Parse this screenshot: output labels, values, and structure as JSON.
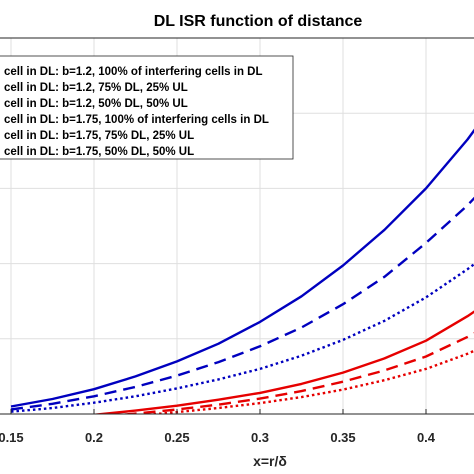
{
  "chart_data": {
    "type": "line",
    "title": "DL  ISR function of distance",
    "xlabel": "x=r/δ",
    "ylabel": "",
    "xlim": [
      0.15,
      0.44
    ],
    "ylim": [
      0,
      1
    ],
    "x_ticks": [
      "0.15",
      "0.2",
      "0.25",
      "0.3",
      "0.35",
      "0.4"
    ],
    "x_tick_values": [
      0.15,
      0.2,
      0.25,
      0.3,
      0.35,
      0.4
    ],
    "grid": true,
    "legend_position": "top-left",
    "x": [
      0.15,
      0.175,
      0.2,
      0.225,
      0.25,
      0.275,
      0.3,
      0.325,
      0.35,
      0.375,
      0.4,
      0.425,
      0.44
    ],
    "series": [
      {
        "name": "cell in DL: b=1.2, 100% of interfering cells in DL",
        "color": "#0000bf",
        "style": "solid",
        "values": [
          0.02,
          0.04,
          0.066,
          0.1,
          0.14,
          0.187,
          0.245,
          0.313,
          0.395,
          0.49,
          0.6,
          0.73,
          0.82
        ]
      },
      {
        "name": "cell in DL: b=1.2, 75% DL, 25% UL",
        "color": "#0000bf",
        "style": "dashed",
        "values": [
          0.012,
          0.027,
          0.047,
          0.072,
          0.102,
          0.138,
          0.18,
          0.23,
          0.292,
          0.365,
          0.455,
          0.555,
          0.625
        ]
      },
      {
        "name": "cell in DL: b=1.2, 50% DL, 50% UL",
        "color": "#0000bf",
        "style": "dotted",
        "values": [
          0.006,
          0.016,
          0.03,
          0.047,
          0.068,
          0.092,
          0.12,
          0.155,
          0.197,
          0.248,
          0.31,
          0.385,
          0.435
        ]
      },
      {
        "name": "cell in DL: b=1.75, 100% of interfering cells in DL",
        "color": "#e60000",
        "style": "solid",
        "values": [
          -0.02,
          -0.012,
          -0.002,
          0.009,
          0.022,
          0.038,
          0.056,
          0.08,
          0.11,
          0.148,
          0.195,
          0.26,
          0.305
        ]
      },
      {
        "name": "cell in DL: b=1.75, 75% DL, 25% UL",
        "color": "#e60000",
        "style": "dashed",
        "values": [
          -0.025,
          -0.018,
          -0.009,
          0.001,
          0.012,
          0.025,
          0.041,
          0.061,
          0.086,
          0.116,
          0.153,
          0.205,
          0.24
        ]
      },
      {
        "name": "cell in DL: b=1.75, 50% DL, 50% UL",
        "color": "#e60000",
        "style": "dotted",
        "values": [
          -0.028,
          -0.022,
          -0.014,
          -0.005,
          0.005,
          0.016,
          0.029,
          0.045,
          0.065,
          0.09,
          0.12,
          0.16,
          0.19
        ]
      }
    ]
  }
}
